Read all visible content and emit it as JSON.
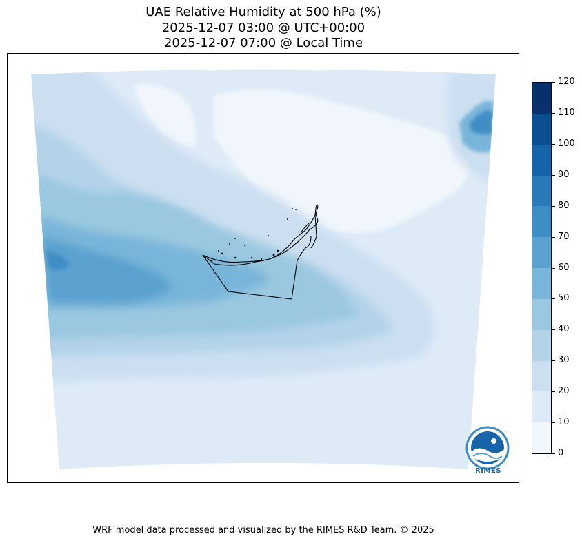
{
  "title": {
    "line1": "UAE Relative Humidity at 500 hPa (%)",
    "line2": "2025-12-07 03:00 @ UTC+00:00",
    "line3": "2025-12-07 07:00 @ Local Time"
  },
  "colorbar": {
    "ticks": [
      "0",
      "10",
      "20",
      "30",
      "40",
      "50",
      "60",
      "70",
      "80",
      "90",
      "100",
      "110",
      "120"
    ],
    "colors": [
      "#f0f6fc",
      "#deebf7",
      "#ccdff1",
      "#b4d3e9",
      "#9ac8e0",
      "#79b5d9",
      "#5aa1cf",
      "#3f8dc5",
      "#2a7aba",
      "#1764ab",
      "#0b4f93",
      "#08306b"
    ]
  },
  "logo": {
    "text": "RIMES"
  },
  "footer": {
    "credit": "WRF model data processed and visualized by the RIMES R&D Team. © 2025"
  }
}
